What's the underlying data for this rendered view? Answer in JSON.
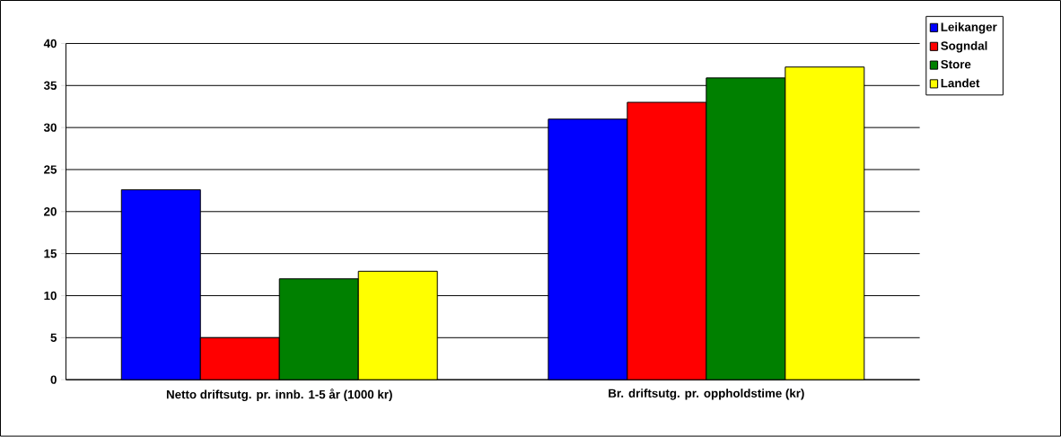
{
  "chart_data": {
    "type": "bar",
    "categories": [
      "Netto driftsutg. pr. innb. 1-5 år (1000 kr)",
      "Br. driftsutg. pr. oppholdstime (kr)"
    ],
    "series": [
      {
        "name": "Leikanger",
        "color": "#0000ff",
        "values": [
          22.6,
          31.0
        ]
      },
      {
        "name": "Sogndal",
        "color": "#ff0000",
        "values": [
          5.0,
          33.0
        ]
      },
      {
        "name": "Store",
        "color": "#008000",
        "values": [
          12.0,
          35.9
        ]
      },
      {
        "name": "Landet",
        "color": "#ffff00",
        "values": [
          12.9,
          37.2
        ]
      }
    ],
    "ylim": [
      0,
      40
    ],
    "yticks": [
      0,
      5,
      10,
      15,
      20,
      25,
      30,
      35,
      40
    ],
    "grid": "y",
    "legend": "top right"
  }
}
